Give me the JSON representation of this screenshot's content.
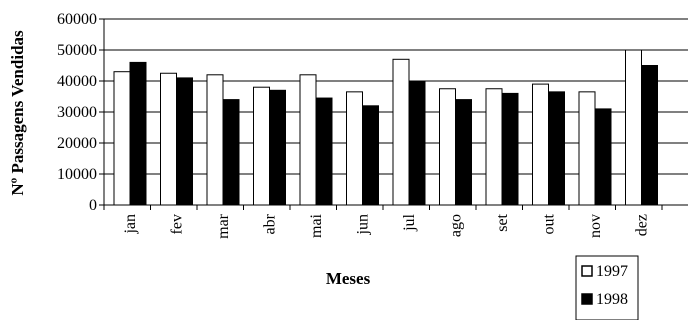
{
  "chart_data": {
    "type": "bar",
    "categories": [
      "jan",
      "fev",
      "mar",
      "abr",
      "mai",
      "jun",
      "jul",
      "ago",
      "set",
      "out",
      "nov",
      "dez"
    ],
    "series": [
      {
        "name": "1997",
        "color": "#ffffff",
        "values": [
          43000,
          42500,
          42000,
          38000,
          42000,
          36500,
          47000,
          37500,
          37500,
          39000,
          36500,
          50000
        ]
      },
      {
        "name": "1998",
        "color": "#000000",
        "values": [
          46000,
          41000,
          34000,
          37000,
          34500,
          32000,
          40000,
          34000,
          36000,
          36500,
          31000,
          45000
        ]
      }
    ],
    "yticks": [
      "0",
      "10000",
      "20000",
      "30000",
      "40000",
      "50000",
      "60000"
    ],
    "ylim": [
      0,
      60000
    ],
    "xlabel": "Meses",
    "ylabel": "Nº Passagens Vendidas",
    "grid": true,
    "legend_position": "bottom-right"
  }
}
